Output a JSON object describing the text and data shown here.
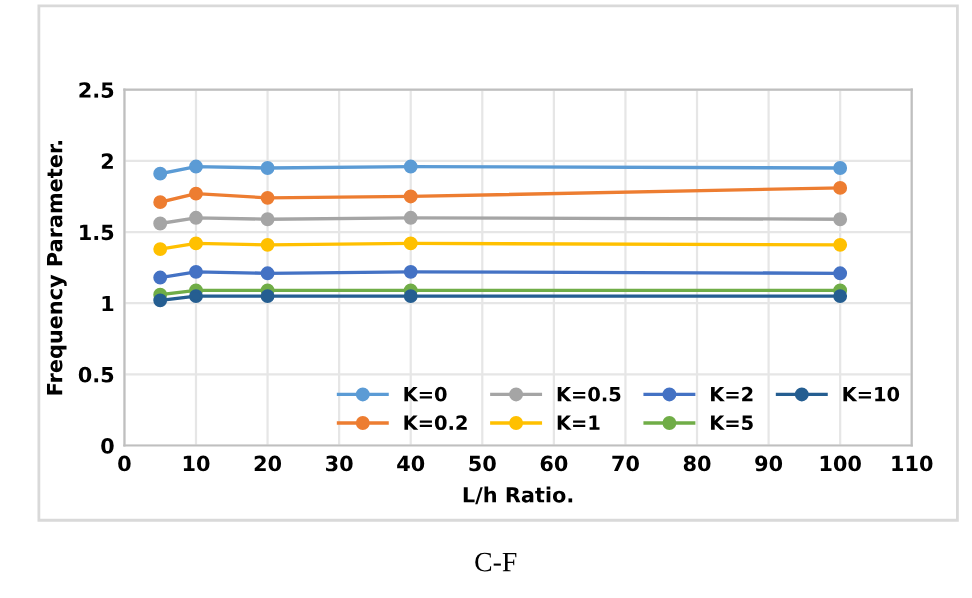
{
  "chart_data": {
    "type": "line",
    "xlabel": "L/h Ratio.",
    "ylabel": "Frequency Parameter.",
    "x": [
      5,
      10,
      20,
      40,
      100
    ],
    "series": [
      {
        "name": "K=0",
        "color": "#5b9bd5",
        "values": [
          1.91,
          1.96,
          1.95,
          1.96,
          1.95
        ]
      },
      {
        "name": "K=0.2",
        "color": "#ed7d31",
        "values": [
          1.71,
          1.77,
          1.74,
          1.75,
          1.81
        ]
      },
      {
        "name": "K=0.5",
        "color": "#a5a5a5",
        "values": [
          1.56,
          1.6,
          1.59,
          1.6,
          1.59
        ]
      },
      {
        "name": "K=1",
        "color": "#ffc000",
        "values": [
          1.38,
          1.42,
          1.41,
          1.42,
          1.41
        ]
      },
      {
        "name": "K=2",
        "color": "#4472c4",
        "values": [
          1.18,
          1.22,
          1.21,
          1.22,
          1.21
        ]
      },
      {
        "name": "K=5",
        "color": "#70ad47",
        "values": [
          1.06,
          1.09,
          1.09,
          1.09,
          1.09
        ]
      },
      {
        "name": "K=10",
        "color": "#255e91",
        "values": [
          1.02,
          1.05,
          1.05,
          1.05,
          1.05
        ]
      }
    ],
    "xlim": [
      0,
      110
    ],
    "xticks": [
      0,
      10,
      20,
      30,
      40,
      50,
      60,
      70,
      80,
      90,
      100,
      110
    ],
    "ylim": [
      0,
      2.5
    ],
    "yticks": [
      0,
      0.5,
      1,
      1.5,
      2,
      2.5
    ],
    "grid": true,
    "legend": "bottom right",
    "marker": "circle",
    "line_style": "solid",
    "annotations": [
      "C-F"
    ]
  }
}
